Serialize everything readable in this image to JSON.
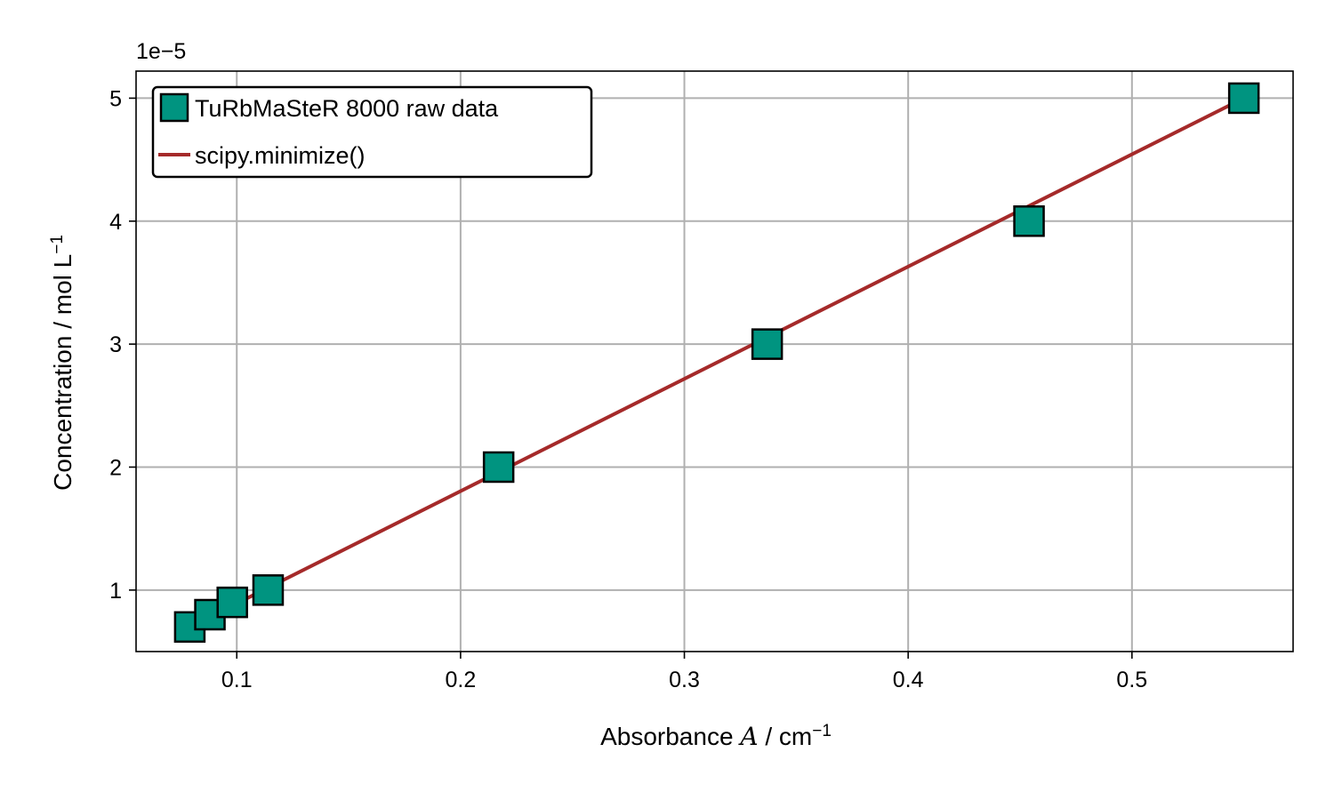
{
  "chart_data": {
    "type": "scatter",
    "title": "",
    "xlabel": {
      "prefix": "Absorbance ",
      "symbol": "A",
      "middle": " / cm",
      "sup": "−1"
    },
    "ylabel": {
      "main": "Concentration / mol L",
      "sup": "−1"
    },
    "y_offset_text": "1e−5",
    "xlim": [
      0.055,
      0.572
    ],
    "ylim": [
      0.5,
      5.22
    ],
    "x_ticks": [
      0.1,
      0.2,
      0.3,
      0.4,
      0.5
    ],
    "x_tick_labels": [
      "0.1",
      "0.2",
      "0.3",
      "0.4",
      "0.5"
    ],
    "y_ticks": [
      1,
      2,
      3,
      4,
      5
    ],
    "y_tick_labels": [
      "1",
      "2",
      "3",
      "4",
      "5"
    ],
    "grid": true,
    "legend_position": "top-left",
    "series": [
      {
        "name": "TuRbMaSteR 8000 raw data",
        "kind": "scatter",
        "marker": "square",
        "color": "#009480",
        "edge_color": "#000000",
        "x": [
          0.079,
          0.088,
          0.098,
          0.114,
          0.217,
          0.337,
          0.454,
          0.55
        ],
        "y": [
          0.7,
          0.8,
          0.9,
          1.0,
          2.0,
          3.0,
          4.0,
          5.0
        ]
      },
      {
        "name": "scipy.minimize()",
        "kind": "line",
        "color": "#a52a2a",
        "x": [
          0.079,
          0.55
        ],
        "y": [
          0.7,
          5.0
        ]
      }
    ]
  }
}
